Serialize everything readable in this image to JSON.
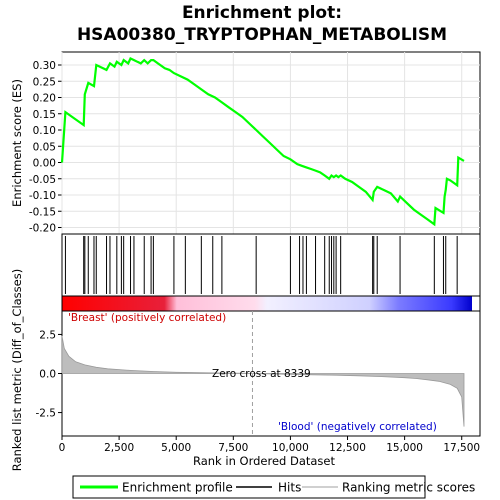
{
  "chart_data": {
    "type": "line",
    "title": "Enrichment plot: HSA00380_TRYPTOPHAN_METABOLISM",
    "panels": {
      "enrichment": {
        "ylabel": "Enrichment score (ES)",
        "ylim": [
          -0.22,
          0.34
        ],
        "yticks": [
          "0.30",
          "0.25",
          "0.20",
          "0.15",
          "0.10",
          "0.05",
          "0.00",
          "-0.05",
          "-0.10",
          "-0.15",
          "-0.20"
        ],
        "ytick_values": [
          0.3,
          0.25,
          0.2,
          0.15,
          0.1,
          0.05,
          0.0,
          -0.05,
          -0.1,
          -0.15,
          -0.2
        ],
        "grid": true,
        "series": [
          {
            "name": "Enrichment profile",
            "color": "#00ff00",
            "x": [
              0,
              150,
              950,
              1000,
              1150,
              1400,
              1500,
              1950,
              2100,
              2300,
              2400,
              2600,
              2700,
              2900,
              3000,
              3150,
              3300,
              3450,
              3600,
              3750,
              3900,
              4000,
              4200,
              4500,
              4700,
              4900,
              5200,
              5500,
              5800,
              6100,
              6400,
              6700,
              7000,
              7300,
              7600,
              7900,
              8200,
              8500,
              8800,
              9100,
              9400,
              9700,
              10000,
              10300,
              10500,
              10700,
              10900,
              11100,
              11300,
              11500,
              11700,
              11800,
              11900,
              12000,
              12100,
              12200,
              12400,
              12700,
              13000,
              13300,
              13600,
              13650,
              13800,
              14100,
              14400,
              14700,
              14800,
              15100,
              15400,
              15700,
              16000,
              16300,
              16350,
              16700,
              16750,
              16800,
              16850,
              17000,
              17300,
              17350,
              17600
            ],
            "y": [
              0.0,
              0.155,
              0.115,
              0.21,
              0.245,
              0.235,
              0.3,
              0.285,
              0.305,
              0.295,
              0.31,
              0.3,
              0.315,
              0.305,
              0.32,
              0.315,
              0.31,
              0.305,
              0.315,
              0.305,
              0.315,
              0.315,
              0.305,
              0.29,
              0.285,
              0.275,
              0.265,
              0.255,
              0.24,
              0.225,
              0.21,
              0.2,
              0.185,
              0.17,
              0.155,
              0.14,
              0.12,
              0.1,
              0.08,
              0.06,
              0.04,
              0.02,
              0.01,
              -0.005,
              -0.01,
              -0.015,
              -0.02,
              -0.025,
              -0.03,
              -0.04,
              -0.05,
              -0.04,
              -0.045,
              -0.04,
              -0.045,
              -0.04,
              -0.05,
              -0.06,
              -0.075,
              -0.09,
              -0.115,
              -0.09,
              -0.075,
              -0.085,
              -0.095,
              -0.12,
              -0.105,
              -0.125,
              -0.145,
              -0.16,
              -0.175,
              -0.19,
              -0.14,
              -0.155,
              -0.105,
              -0.085,
              -0.05,
              -0.055,
              -0.07,
              0.015,
              0.005
            ]
          }
        ]
      },
      "hits": {
        "label": "Hits",
        "positions": [
          150,
          950,
          1000,
          1150,
          1400,
          1500,
          1950,
          2100,
          2400,
          2600,
          2700,
          3000,
          3150,
          3600,
          3900,
          4000,
          4900,
          5400,
          6100,
          6600,
          7000,
          8500,
          10000,
          10400,
          10550,
          10700,
          11100,
          11500,
          11700,
          11800,
          11900,
          12000,
          12200,
          13600,
          13650,
          13800,
          14800,
          16300,
          16700,
          16800,
          17300
        ]
      },
      "ranked_metric": {
        "ylabel": "Ranked list metric (Diff_of_Classes)",
        "ylim": [
          -4.0,
          4.0
        ],
        "yticks": [
          "2.5",
          "0.0",
          "-2.5"
        ],
        "ytick_values": [
          2.5,
          0.0,
          -2.5
        ],
        "xlabel": "Rank in Ordered Dataset",
        "xlim": [
          0,
          18300
        ],
        "xticks": [
          "0",
          "2,500",
          "5,000",
          "7,500",
          "10,000",
          "12,500",
          "15,000",
          "17,500"
        ],
        "xtick_values": [
          0,
          2500,
          5000,
          7500,
          10000,
          12500,
          15000,
          17500
        ],
        "zero_cross_label": "Zero cross at 8339",
        "zero_cross": 8339,
        "positive_label": "'Breast' (positively correlated)",
        "negative_label": "'Blood' (negatively correlated)",
        "positive_color": "#ff0000",
        "negative_color": "#0000ff",
        "profile_x": [
          0,
          100,
          300,
          600,
          1000,
          1500,
          2000,
          3000,
          4000,
          5000,
          6000,
          7000,
          8000,
          8339,
          9000,
          10000,
          11000,
          12000,
          13000,
          14000,
          15000,
          15500,
          16000,
          16500,
          17000,
          17300,
          17500,
          17600
        ],
        "profile_y": [
          2.4,
          1.6,
          1.1,
          0.75,
          0.55,
          0.4,
          0.3,
          0.2,
          0.13,
          0.08,
          0.05,
          0.03,
          0.01,
          0.0,
          -0.02,
          -0.05,
          -0.08,
          -0.11,
          -0.15,
          -0.2,
          -0.27,
          -0.32,
          -0.4,
          -0.5,
          -0.7,
          -0.95,
          -1.5,
          -3.4
        ]
      }
    },
    "legend": {
      "placement": "bottom",
      "entries": [
        {
          "label": "Enrichment profile",
          "color": "#00ff00"
        },
        {
          "label": "Hits",
          "color": "#000000"
        },
        {
          "label": "Ranking metric scores",
          "color": "#c0c0c0"
        }
      ]
    }
  }
}
